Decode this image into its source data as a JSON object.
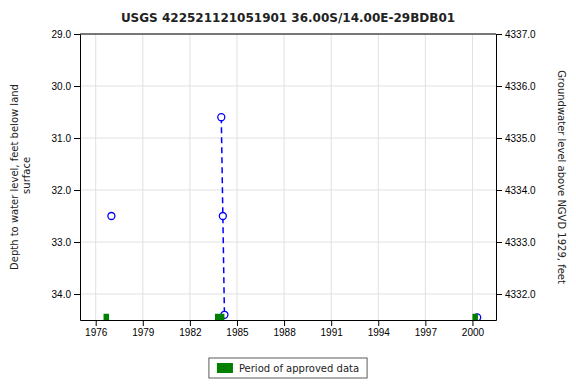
{
  "chart_data": {
    "type": "scatter",
    "title": "USGS 422521121051901 36.00S/14.00E-29BDB01",
    "xlim": [
      1975,
      2001.5
    ],
    "xticks": [
      1976,
      1979,
      1982,
      1985,
      1988,
      1991,
      1994,
      1997,
      2000
    ],
    "ylabel": "Depth to water level, feet below land\n surface",
    "ylim": [
      34.5,
      29.0
    ],
    "yticks": [
      {
        "value": 29.0,
        "label": "29.0"
      },
      {
        "value": 30.0,
        "label": "30.0"
      },
      {
        "value": 31.0,
        "label": "31.0"
      },
      {
        "value": 32.0,
        "label": "32.0"
      },
      {
        "value": 33.0,
        "label": "33.0"
      },
      {
        "value": 34.0,
        "label": "34.0"
      }
    ],
    "y2label": "Groundwater level above NGVD 1929, feet",
    "y2lim": [
      4331.5,
      4337.0
    ],
    "y2ticks": [
      {
        "value": 4332.0,
        "label": "4332.0"
      },
      {
        "value": 4333.0,
        "label": "4333.0"
      },
      {
        "value": 4334.0,
        "label": "4334.0"
      },
      {
        "value": 4335.0,
        "label": "4335.0"
      },
      {
        "value": 4336.0,
        "label": "4336.0"
      },
      {
        "value": 4337.0,
        "label": "4337.0"
      }
    ],
    "grid": true,
    "legend": "bottom",
    "series": [
      {
        "type": "line",
        "line_style": "dashed",
        "color": "#0000ff",
        "x": [
          1984.0,
          1984.1,
          1984.2
        ],
        "values": [
          30.6,
          32.5,
          34.4
        ]
      },
      {
        "type": "scatter",
        "marker": "open-circle",
        "color": "#0000ff",
        "x": [
          1977.0,
          1984.0,
          1984.1,
          1984.2,
          2000.3
        ],
        "values": [
          32.5,
          30.6,
          32.5,
          34.4,
          34.45
        ]
      },
      {
        "type": "span",
        "name": "Period of approved data",
        "color": "#008000",
        "x": [
          1976.5,
          1983.6,
          2000.0
        ],
        "width": [
          0.35,
          0.6,
          0.35
        ],
        "y": 34.38,
        "height": 0.12
      }
    ]
  }
}
